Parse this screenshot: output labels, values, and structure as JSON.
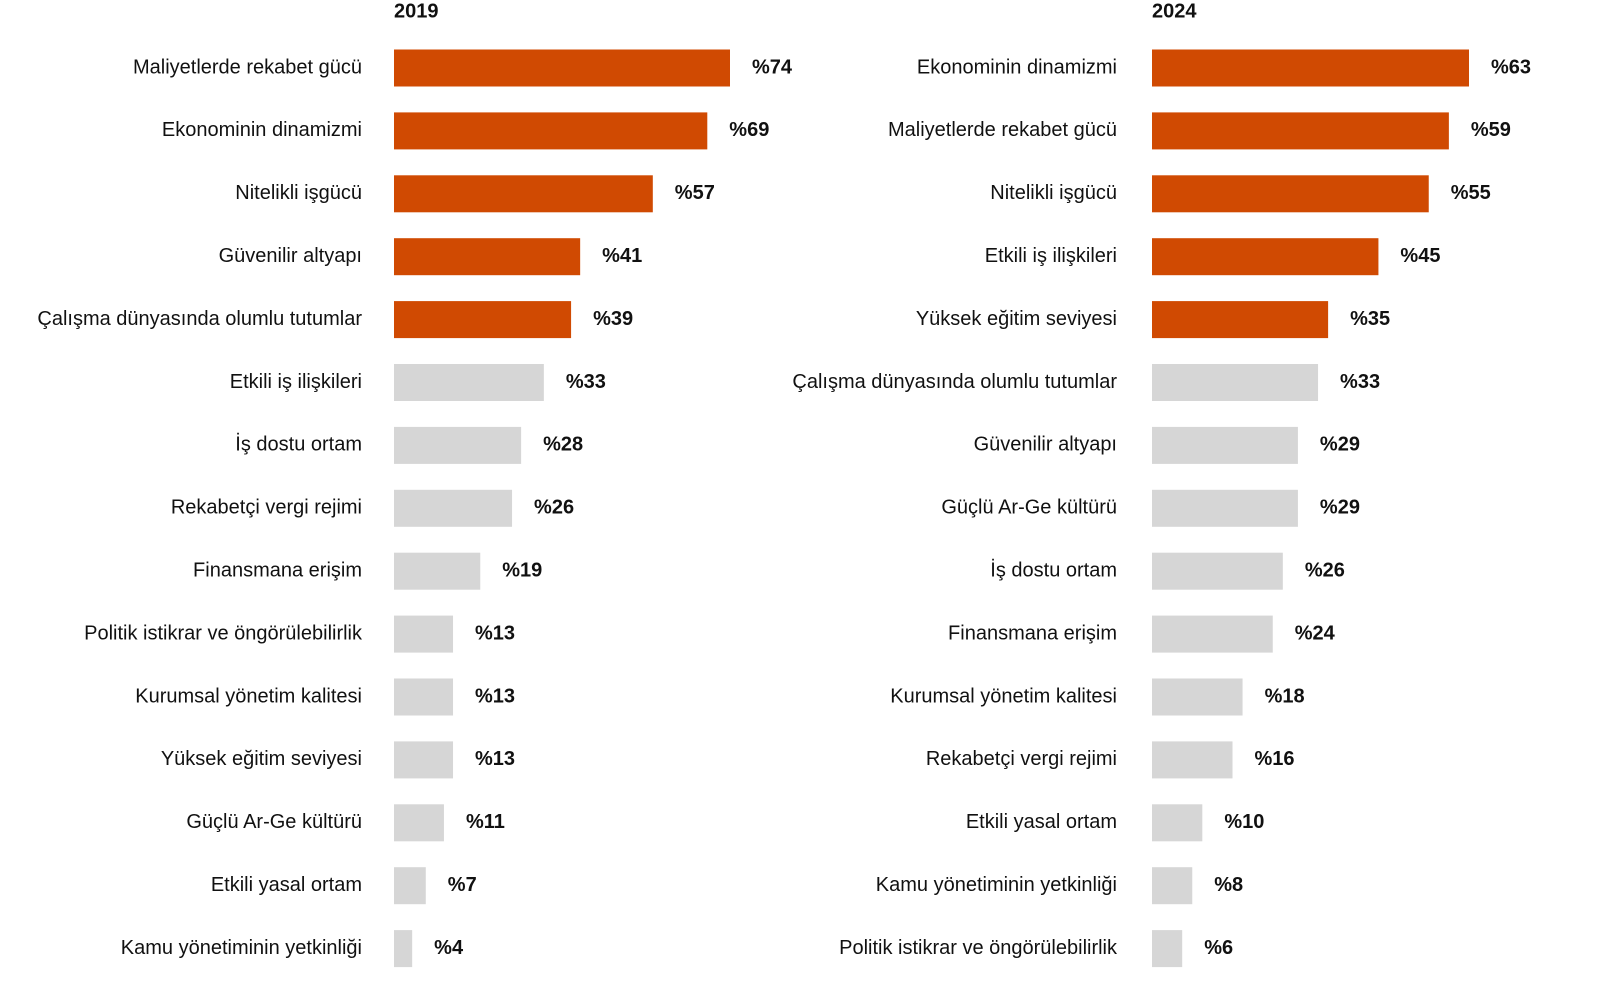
{
  "chart_data": [
    {
      "type": "barh",
      "title": "2019",
      "categories": [
        "Maliyetlerde rekabet gücü",
        "Ekonominin dinamizmi",
        "Nitelikli işgücü",
        "Güvenilir altyapı",
        "Çalışma dünyasında olumlu tutumlar",
        "Etkili iş ilişkileri",
        "İş dostu ortam",
        "Rekabetçi vergi rejimi",
        "Finansmana erişim",
        "Politik istikrar ve öngörülebilirlik",
        "Kurumsal yönetim kalitesi",
        "Yüksek eğitim seviyesi",
        "Güçlü Ar-Ge kültürü",
        "Etkili yasal ortam",
        "Kamu yönetiminin yetkinliği"
      ],
      "values": [
        74,
        69,
        57,
        41,
        39,
        33,
        28,
        26,
        19,
        13,
        13,
        13,
        11,
        7,
        4
      ],
      "value_labels": [
        "%74",
        "%69",
        "%57",
        "%41",
        "%39",
        "%33",
        "%28",
        "%26",
        "%19",
        "%13",
        "%13",
        "%13",
        "%11",
        "%7",
        "%4"
      ],
      "colors": [
        "#d04a02",
        "#d04a02",
        "#d04a02",
        "#d04a02",
        "#d04a02",
        "#d6d6d6",
        "#d6d6d6",
        "#d6d6d6",
        "#d6d6d6",
        "#d6d6d6",
        "#d6d6d6",
        "#d6d6d6",
        "#d6d6d6",
        "#d6d6d6",
        "#d6d6d6"
      ]
    },
    {
      "type": "barh",
      "title": "2024",
      "categories": [
        "Ekonominin dinamizmi",
        "Maliyetlerde rekabet gücü",
        "Nitelikli işgücü",
        "Etkili iş ilişkileri",
        "Yüksek eğitim seviyesi",
        "Çalışma dünyasında olumlu tutumlar",
        "Güvenilir altyapı",
        "Güçlü Ar-Ge kültürü",
        "İş dostu ortam",
        "Finansmana erişim",
        "Kurumsal yönetim kalitesi",
        "Rekabetçi vergi rejimi",
        "Etkili yasal ortam",
        "Kamu yönetiminin yetkinliği",
        "Politik istikrar ve öngörülebilirlik"
      ],
      "values": [
        63,
        59,
        55,
        45,
        35,
        33,
        29,
        29,
        26,
        24,
        18,
        16,
        10,
        8,
        6
      ],
      "value_labels": [
        "%63",
        "%59",
        "%55",
        "%45",
        "%35",
        "%33",
        "%29",
        "%29",
        "%26",
        "%24",
        "%18",
        "%16",
        "%10",
        "%8",
        "%6"
      ],
      "colors": [
        "#d04a02",
        "#d04a02",
        "#d04a02",
        "#d04a02",
        "#d04a02",
        "#d6d6d6",
        "#d6d6d6",
        "#d6d6d6",
        "#d6d6d6",
        "#d6d6d6",
        "#d6d6d6",
        "#d6d6d6",
        "#d6d6d6",
        "#d6d6d6",
        "#d6d6d6"
      ]
    }
  ]
}
